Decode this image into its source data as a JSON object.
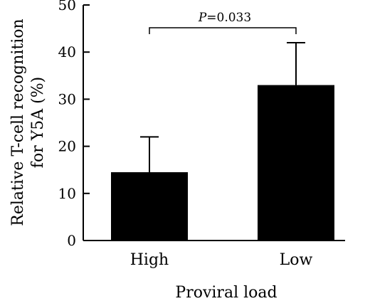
{
  "chart_data": {
    "type": "bar",
    "categories": [
      "High",
      "Low"
    ],
    "values": [
      14.5,
      33
    ],
    "error_upper": [
      22,
      42
    ],
    "xlabel": "Proviral load",
    "ylabel_lines": [
      "Relative T-cell recognition",
      "for Y5A (%)"
    ],
    "ylim": [
      0,
      50
    ],
    "yticks": [
      0,
      10,
      20,
      30,
      40,
      50
    ],
    "grid": false,
    "bar_color": "#000000",
    "annotation": {
      "prefix": "P",
      "text": "=0.033"
    }
  }
}
